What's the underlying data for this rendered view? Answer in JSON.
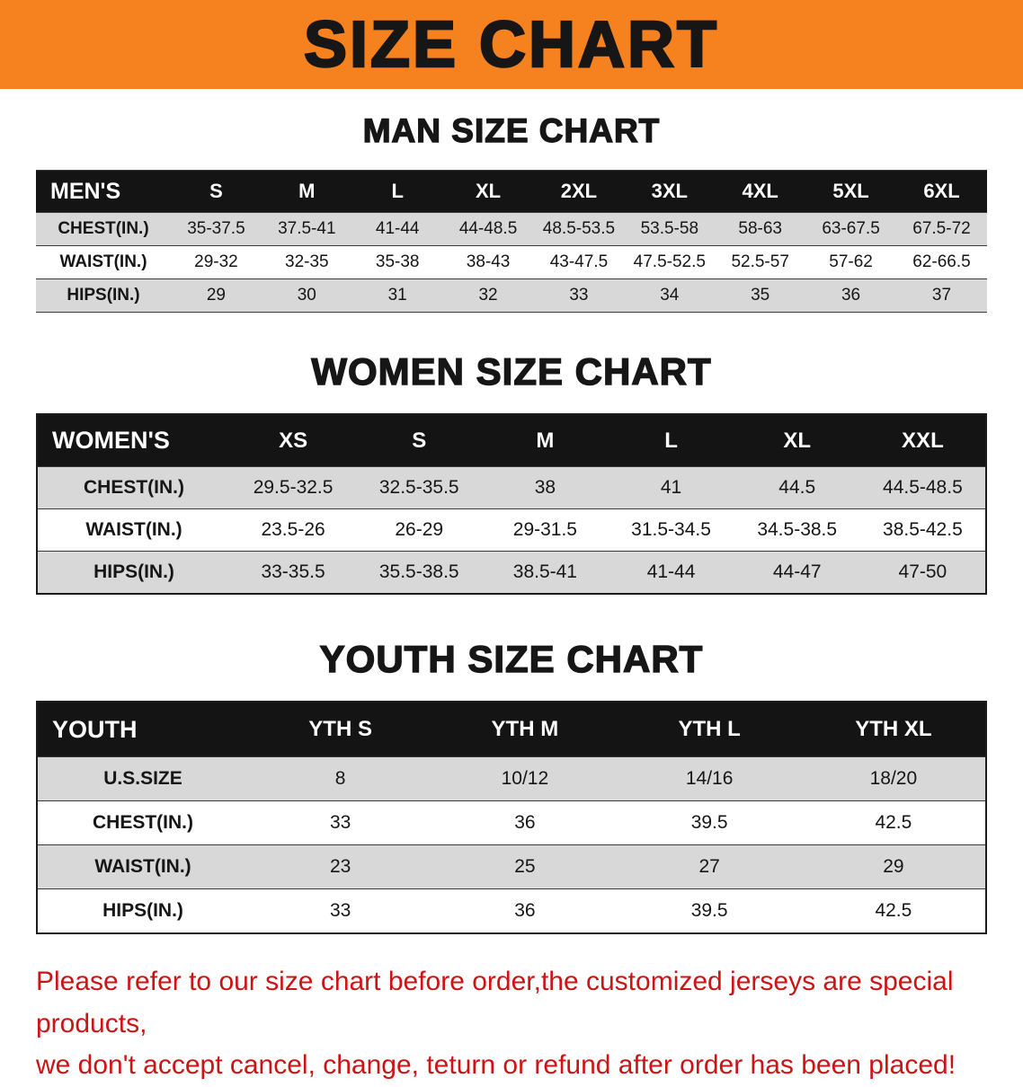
{
  "banner": {
    "title": "SIZE CHART"
  },
  "men": {
    "heading": "MAN SIZE CHART",
    "table": {
      "header": [
        "MEN'S",
        "S",
        "M",
        "L",
        "XL",
        "2XL",
        "3XL",
        "4XL",
        "5XL",
        "6XL"
      ],
      "rows": [
        {
          "label": "CHEST(IN.)",
          "values": [
            "35-37.5",
            "37.5-41",
            "41-44",
            "44-48.5",
            "48.5-53.5",
            "53.5-58",
            "58-63",
            "63-67.5",
            "67.5-72"
          ]
        },
        {
          "label": "WAIST(IN.)",
          "values": [
            "29-32",
            "32-35",
            "35-38",
            "38-43",
            "43-47.5",
            "47.5-52.5",
            "52.5-57",
            "57-62",
            "62-66.5"
          ]
        },
        {
          "label": "HIPS(IN.)",
          "values": [
            "29",
            "30",
            "31",
            "32",
            "33",
            "34",
            "35",
            "36",
            "37"
          ]
        }
      ]
    }
  },
  "women": {
    "heading": "WOMEN SIZE CHART",
    "table": {
      "header": [
        "WOMEN'S",
        "XS",
        "S",
        "M",
        "L",
        "XL",
        "XXL"
      ],
      "rows": [
        {
          "label": "CHEST(IN.)",
          "values": [
            "29.5-32.5",
            "32.5-35.5",
            "38",
            "41",
            "44.5",
            "44.5-48.5"
          ]
        },
        {
          "label": "WAIST(IN.)",
          "values": [
            "23.5-26",
            "26-29",
            "29-31.5",
            "31.5-34.5",
            "34.5-38.5",
            "38.5-42.5"
          ]
        },
        {
          "label": "HIPS(IN.)",
          "values": [
            "33-35.5",
            "35.5-38.5",
            "38.5-41",
            "41-44",
            "44-47",
            "47-50"
          ]
        }
      ]
    }
  },
  "youth": {
    "heading": "YOUTH SIZE CHART",
    "table": {
      "header": [
        "YOUTH",
        "YTH S",
        "YTH M",
        "YTH L",
        "YTH XL"
      ],
      "rows": [
        {
          "label": "U.S.SIZE",
          "values": [
            "8",
            "10/12",
            "14/16",
            "18/20"
          ]
        },
        {
          "label": "CHEST(IN.)",
          "values": [
            "33",
            "36",
            "39.5",
            "42.5"
          ]
        },
        {
          "label": "WAIST(IN.)",
          "values": [
            "23",
            "25",
            "27",
            "29"
          ]
        },
        {
          "label": "HIPS(IN.)",
          "values": [
            "33",
            "36",
            "39.5",
            "42.5"
          ]
        }
      ]
    }
  },
  "disclaimer": {
    "line1": "Please refer to our size chart before order,the customized jerseys are special products,",
    "line2": "we don't accept cancel, change, teturn or refund after order has been placed!"
  },
  "colors": {
    "banner_bg": "#F5821F",
    "table_header_bg": "#141414",
    "row_alt_bg": "#D8D8D8",
    "disclaimer_text": "#CC1414"
  }
}
